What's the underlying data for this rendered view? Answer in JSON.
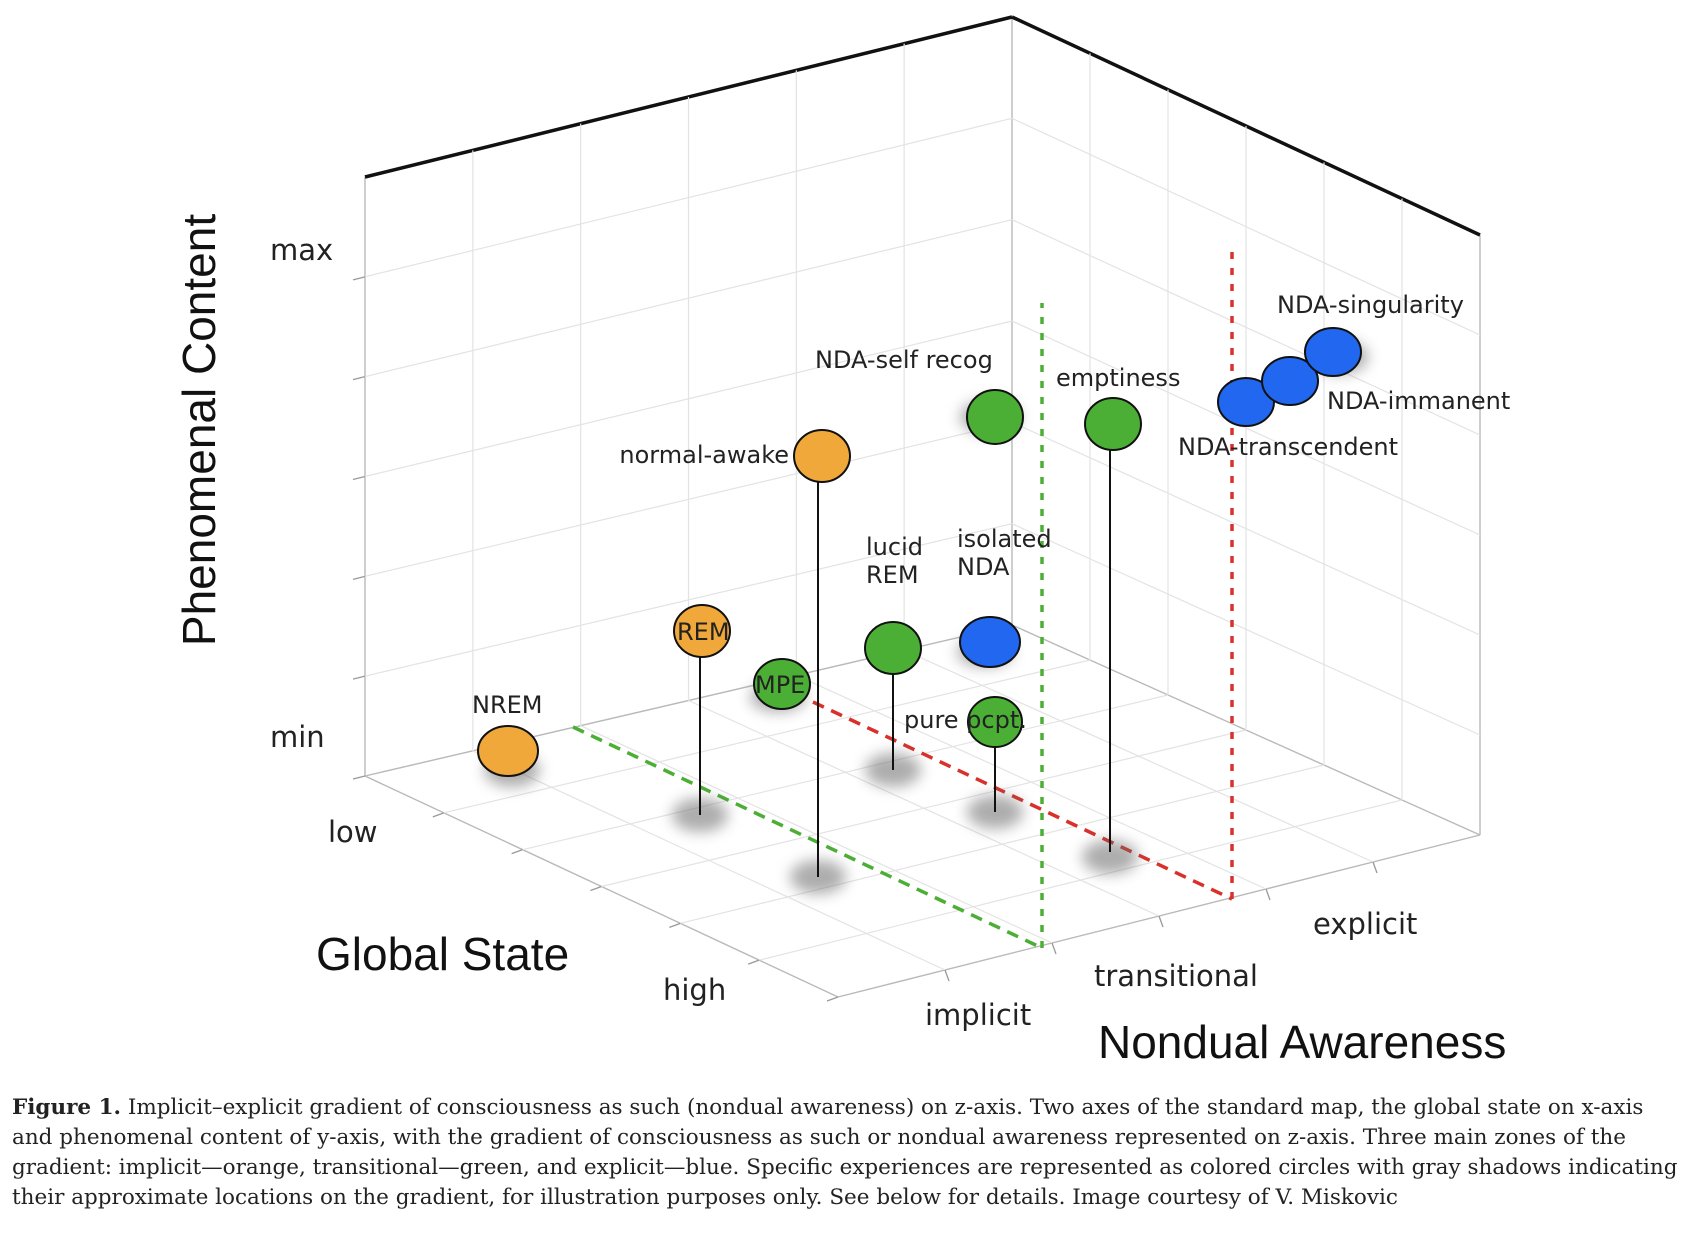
{
  "chart_data": {
    "type": "scatter",
    "projection": "3d",
    "axes": {
      "x": {
        "label": "Global State",
        "ticks": [
          "low",
          "high"
        ]
      },
      "y": {
        "label": "Phenomenal Content",
        "ticks": [
          "min",
          "max"
        ]
      },
      "z": {
        "label": "Nondual Awareness",
        "ticks": [
          "implicit",
          "transitional",
          "explicit"
        ]
      }
    },
    "grid": true,
    "zones": [
      {
        "name": "implicit",
        "color": "#F0A83A"
      },
      {
        "name": "transitional",
        "color": "#4CAF35"
      },
      {
        "name": "explicit",
        "color": "#2167F0"
      }
    ],
    "points": [
      {
        "label": "NREM",
        "x": 0.04,
        "y": 0.0,
        "z": 0.03,
        "zone": "implicit",
        "shadow": false
      },
      {
        "label": "REM",
        "x": 0.46,
        "y": 0.29,
        "z": 0.18,
        "zone": "implicit",
        "shadow": true
      },
      {
        "label": "normal-awake",
        "x": 0.79,
        "y": 0.63,
        "z": 0.18,
        "zone": "implicit",
        "shadow": true
      },
      {
        "label": "MPE",
        "x": 0.47,
        "y": 0.12,
        "z": 0.48,
        "zone": "transitional",
        "shadow": false
      },
      {
        "label": "lucid\nREM",
        "x": 0.46,
        "y": 0.13,
        "z": 0.46,
        "zone": "transitional",
        "shadow": true
      },
      {
        "label": "pure pcpt.",
        "x": 0.7,
        "y": 0.1,
        "z": 0.64,
        "zone": "transitional",
        "shadow": true
      },
      {
        "label": "NDA-self recog",
        "x": 0.25,
        "y": 0.62,
        "z": 0.52,
        "zone": "transitional",
        "shadow": false
      },
      {
        "label": "emptiness",
        "x": 0.68,
        "y": 0.72,
        "z": 0.7,
        "zone": "transitional",
        "shadow": true
      },
      {
        "label": "isolated\nNDA",
        "x": 0.24,
        "y": 0.23,
        "z": 0.5,
        "zone": "explicit",
        "shadow": false
      },
      {
        "label": "NDA-transcendent",
        "x": 0.48,
        "y": 0.82,
        "z": 0.98,
        "zone": "explicit",
        "shadow": false
      },
      {
        "label": "NDA-immanent",
        "x": 0.46,
        "y": 0.88,
        "z": 1.05,
        "zone": "explicit",
        "shadow": false
      },
      {
        "label": "NDA-singularity",
        "x": 0.44,
        "y": 0.94,
        "z": 1.12,
        "zone": "explicit",
        "shadow": false
      }
    ],
    "boundaries": [
      {
        "between": [
          "implicit",
          "transitional"
        ],
        "color": "#4CAF35",
        "style": "dashed"
      },
      {
        "between": [
          "transitional",
          "explicit"
        ],
        "color": "#D9302A",
        "style": "dashed"
      }
    ]
  },
  "caption": {
    "label": "Figure 1.",
    "text": " Implicit–explicit gradient of consciousness as such (nondual awareness) on z-axis. Two axes of the standard map, the global state on x-axis and phenomenal content of y-axis, with the gradient of consciousness as such or nondual awareness represented on z-axis. Three main zones of the gradient: implicit—orange, transitional—green, and explicit—blue. Specific experiences are represented as colored circles with gray shadows indicating their approximate locations on the gradient, for illustration purposes only. See below for details. Image courtesy of V. Miskovic"
  }
}
